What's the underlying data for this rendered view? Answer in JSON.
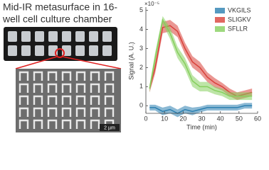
{
  "figure_title": [
    "Mid-IR metasurface in 16-",
    "well cell culture chamber"
  ],
  "scale_bar": "2 µm",
  "chart_data": {
    "type": "line",
    "multiplier": "×10⁻⁵",
    "x_label": "Time (min)",
    "y_label": "Signal (A. U.)",
    "x": [
      2,
      5,
      9,
      13,
      17,
      21,
      25,
      29,
      33,
      37,
      41,
      45,
      49,
      53,
      57
    ],
    "series": [
      {
        "name": "VKGILS",
        "color": "#2b7fb0",
        "values": [
          -0.1,
          -0.1,
          -0.3,
          -0.2,
          -0.4,
          -0.2,
          -0.3,
          -0.2,
          -0.1,
          -0.1,
          -0.1,
          -0.1,
          -0.1,
          0.0,
          0.0
        ],
        "errors": [
          0.15,
          0.15,
          0.2,
          0.2,
          0.2,
          0.2,
          0.2,
          0.15,
          0.15,
          0.15,
          0.15,
          0.15,
          0.15,
          0.15,
          0.15
        ]
      },
      {
        "name": "SLIGKV",
        "color": "#d9413a",
        "values": [
          0.9,
          2.0,
          4.1,
          4.2,
          3.9,
          3.0,
          2.3,
          2.0,
          1.5,
          1.2,
          1.0,
          0.7,
          0.5,
          0.6,
          0.7
        ],
        "errors": [
          0.2,
          0.3,
          0.3,
          0.3,
          0.3,
          0.3,
          0.3,
          0.3,
          0.25,
          0.25,
          0.2,
          0.2,
          0.2,
          0.2,
          0.2
        ]
      },
      {
        "name": "SFLLR",
        "color": "#86cf5e",
        "values": [
          0.9,
          2.5,
          4.5,
          3.8,
          2.8,
          2.2,
          1.3,
          1.0,
          1.0,
          0.8,
          0.7,
          0.5,
          0.5,
          0.5,
          0.5
        ],
        "errors": [
          0.2,
          0.3,
          0.2,
          0.3,
          0.3,
          0.3,
          0.3,
          0.25,
          0.25,
          0.2,
          0.2,
          0.2,
          0.2,
          0.2,
          0.2
        ]
      }
    ],
    "xlim": [
      0,
      60
    ],
    "xticks": [
      0,
      10,
      20,
      30,
      40,
      50,
      60
    ],
    "ylim": [
      -0.4,
      5.1
    ],
    "yticks": [
      0,
      1,
      2,
      3,
      4,
      5
    ],
    "legend": "upper right"
  }
}
